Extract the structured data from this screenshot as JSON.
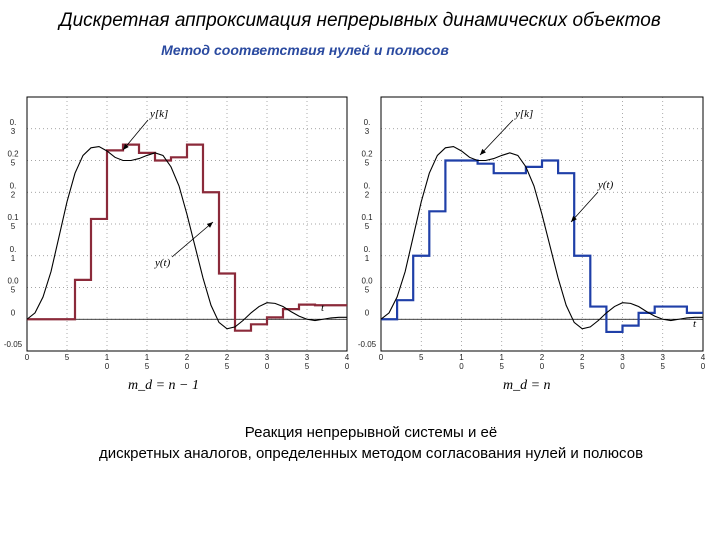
{
  "slide": {
    "title": "Дискретная аппроксимация непрерывных динамических объектов",
    "subtitle": "Метод соответствия нулей и полюсов",
    "caption_line1": "Реакция непрерывной системы и её",
    "caption_line2": "дискретных аналогов, определенных методом согласования нулей и полюсов"
  },
  "colors": {
    "step_left": "#8b2a3a",
    "step_right": "#1f3fa8",
    "continuous": "#000000"
  },
  "chart_data": [
    {
      "type": "line",
      "xlim": [
        0,
        40
      ],
      "ylim": [
        -0.05,
        0.35
      ],
      "ytick_labels": [
        "0.\n3",
        "0.2\n5",
        "0.\n2",
        "0.1\n5",
        "0.\n1",
        "0.0\n5",
        "0",
        "-0.05"
      ],
      "xtick_labels": [
        "0",
        "5",
        "1\n0",
        "1\n5",
        "2\n0",
        "2\n5",
        "3\n0",
        "3\n5",
        "4\n0"
      ],
      "annotations": [
        "y[k]",
        "y(t)",
        "t"
      ],
      "formula": "m_d = n − 1",
      "series": [
        {
          "name": "y[k]",
          "style": "step",
          "color": "#8b2a3a",
          "x": [
            0,
            4,
            6,
            8,
            10,
            12,
            14,
            16,
            18,
            20,
            22,
            24,
            26,
            28,
            30,
            32,
            34,
            36,
            38,
            40
          ],
          "values": [
            0,
            0,
            0.062,
            0.158,
            0.266,
            0.275,
            0.262,
            0.25,
            0.255,
            0.275,
            0.2,
            0.072,
            -0.018,
            -0.008,
            0.003,
            0.016,
            0.023,
            0.022,
            0.022,
            0.022
          ]
        },
        {
          "name": "y(t)",
          "style": "line",
          "color": "#000000",
          "x": [
            0,
            1,
            2,
            3,
            4,
            5,
            6,
            7,
            8,
            9,
            10,
            11,
            12,
            13,
            14,
            15,
            16,
            17,
            18,
            19,
            20,
            21,
            22,
            23,
            24,
            25,
            26,
            27,
            28,
            29,
            30,
            31,
            32,
            33,
            34,
            35,
            36,
            37,
            38,
            39,
            40
          ],
          "values": [
            0,
            0.01,
            0.035,
            0.075,
            0.13,
            0.185,
            0.23,
            0.258,
            0.27,
            0.272,
            0.265,
            0.255,
            0.25,
            0.25,
            0.253,
            0.258,
            0.262,
            0.258,
            0.24,
            0.21,
            0.165,
            0.115,
            0.065,
            0.022,
            -0.005,
            -0.015,
            -0.012,
            -0.002,
            0.01,
            0.02,
            0.026,
            0.025,
            0.02,
            0.012,
            0.005,
            0.0,
            -0.002,
            0.0,
            0.002,
            0.003,
            0.003
          ]
        }
      ]
    },
    {
      "type": "line",
      "xlim": [
        0,
        40
      ],
      "ylim": [
        -0.05,
        0.35
      ],
      "ytick_labels": [
        "0.\n3",
        "0.2\n5",
        "0.\n2",
        "0.1\n5",
        "0.\n1",
        "0.0\n5",
        "0",
        "-0.05"
      ],
      "xtick_labels": [
        "0",
        "5",
        "1\n0",
        "1\n5",
        "2\n0",
        "2\n5",
        "3\n0",
        "3\n5",
        "4\n0"
      ],
      "annotations": [
        "y[k]",
        "y(t)",
        "t"
      ],
      "formula": "m_d = n",
      "series": [
        {
          "name": "y[k]",
          "style": "step",
          "color": "#1f3fa8",
          "x": [
            0,
            2,
            4,
            6,
            8,
            10,
            12,
            14,
            16,
            18,
            20,
            22,
            24,
            26,
            28,
            30,
            32,
            34,
            36,
            38,
            40
          ],
          "values": [
            0,
            0.03,
            0.1,
            0.17,
            0.25,
            0.25,
            0.245,
            0.23,
            0.23,
            0.24,
            0.25,
            0.23,
            0.1,
            0.02,
            -0.02,
            -0.01,
            0.01,
            0.02,
            0.02,
            0.01,
            0.01
          ]
        },
        {
          "name": "y(t)",
          "style": "line",
          "color": "#000000",
          "x": [
            0,
            1,
            2,
            3,
            4,
            5,
            6,
            7,
            8,
            9,
            10,
            11,
            12,
            13,
            14,
            15,
            16,
            17,
            18,
            19,
            20,
            21,
            22,
            23,
            24,
            25,
            26,
            27,
            28,
            29,
            30,
            31,
            32,
            33,
            34,
            35,
            36,
            37,
            38,
            39,
            40
          ],
          "values": [
            0,
            0.01,
            0.035,
            0.075,
            0.13,
            0.185,
            0.23,
            0.258,
            0.27,
            0.272,
            0.265,
            0.255,
            0.25,
            0.25,
            0.253,
            0.258,
            0.262,
            0.258,
            0.24,
            0.21,
            0.165,
            0.115,
            0.065,
            0.022,
            -0.005,
            -0.015,
            -0.012,
            -0.002,
            0.01,
            0.02,
            0.026,
            0.025,
            0.02,
            0.012,
            0.005,
            0.0,
            -0.002,
            0.0,
            0.002,
            0.003,
            0.003
          ]
        }
      ]
    }
  ]
}
